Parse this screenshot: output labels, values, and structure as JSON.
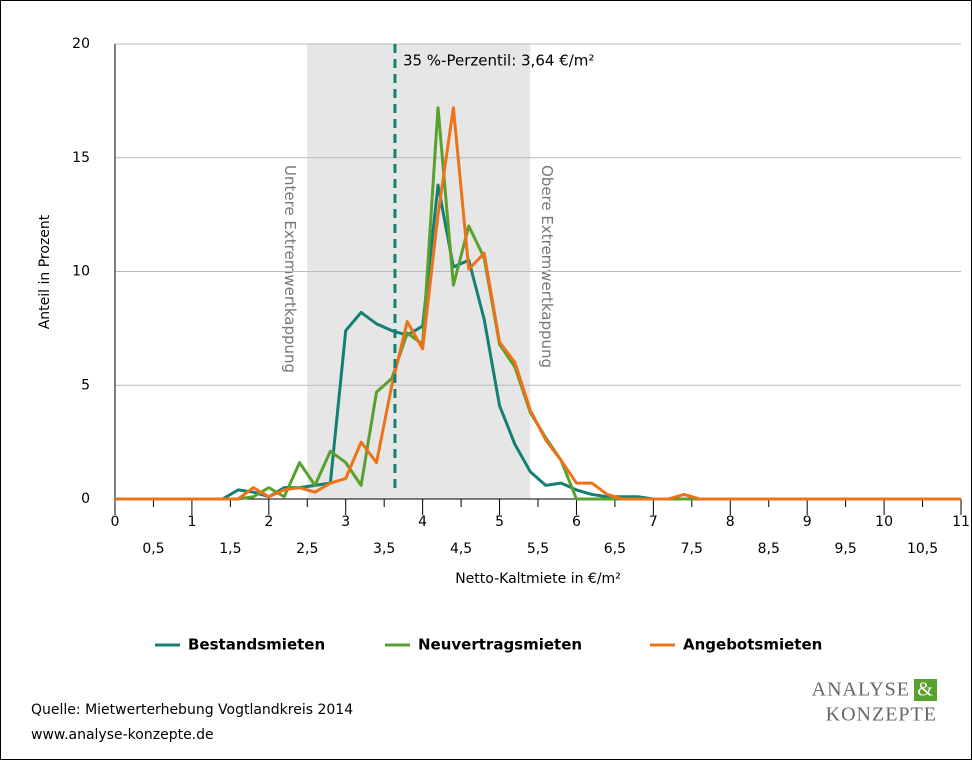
{
  "chart_data": {
    "type": "line",
    "ylabel": "Anteil in Prozent",
    "xlabel": "Netto-Kaltmiete in €/m²",
    "xlim": [
      0,
      11
    ],
    "ylim": [
      0,
      20
    ],
    "yticks": [
      0,
      5,
      10,
      15,
      20
    ],
    "xticks": [
      0,
      1,
      2,
      3,
      4,
      5,
      6,
      7,
      8,
      9,
      10,
      11
    ],
    "xticks_half": [
      {
        "value": 0.5,
        "label": "0,5"
      },
      {
        "value": 1.5,
        "label": "1,5"
      },
      {
        "value": 2.5,
        "label": "2,5"
      },
      {
        "value": 3.5,
        "label": "3,5"
      },
      {
        "value": 4.5,
        "label": "4,5"
      },
      {
        "value": 5.5,
        "label": "5,5"
      },
      {
        "value": 6.5,
        "label": "6,5"
      },
      {
        "value": 7.5,
        "label": "7,5"
      },
      {
        "value": 8.5,
        "label": "8,5"
      },
      {
        "value": 9.5,
        "label": "9,5"
      },
      {
        "value": 10.5,
        "label": "10,5"
      }
    ],
    "grid": true,
    "shaded_region": {
      "from": 2.5,
      "to": 5.4,
      "color": "#e6e6e6",
      "label_left": "Untere Extremwertkappung",
      "label_right": "Obere Extremwertkappung"
    },
    "percentile_line": {
      "value": 3.64,
      "label": "35 %-Perzentil: 3,64 €/m²",
      "color": "#138074"
    },
    "x": [
      0,
      0.2,
      0.4,
      0.6,
      0.8,
      1,
      1.2,
      1.4,
      1.6,
      1.8,
      2,
      2.2,
      2.4,
      2.6,
      2.8,
      3,
      3.2,
      3.4,
      3.6,
      3.8,
      4,
      4.2,
      4.4,
      4.6,
      4.8,
      5,
      5.2,
      5.4,
      5.6,
      5.8,
      6,
      6.2,
      6.4,
      6.6,
      6.8,
      7,
      7.2,
      7.4,
      7.6,
      7.8,
      8,
      8.2,
      8.4,
      8.6,
      8.8,
      9,
      9.2,
      9.4,
      9.6,
      9.8,
      10,
      10.2,
      10.4,
      10.6,
      10.8,
      11
    ],
    "series": [
      {
        "name": "Bestandsmieten",
        "color": "#138074",
        "values": [
          0,
          0,
          0,
          0,
          0,
          0,
          0,
          0,
          0.4,
          0.3,
          0.1,
          0.5,
          0.5,
          0.6,
          0.7,
          7.4,
          8.2,
          7.7,
          7.4,
          7.2,
          7.6,
          13.8,
          10.2,
          10.5,
          7.9,
          4.1,
          2.4,
          1.2,
          0.6,
          0.7,
          0.4,
          0.2,
          0.1,
          0.1,
          0.1,
          0,
          0,
          0,
          0,
          0,
          0,
          0,
          0,
          0,
          0,
          0,
          0,
          0,
          0,
          0,
          0,
          0,
          0,
          0,
          0,
          0
        ]
      },
      {
        "name": "Neuvertragsmieten",
        "color": "#5aa02c",
        "values": [
          0,
          0,
          0,
          0,
          0,
          0,
          0,
          0,
          0,
          0.1,
          0.5,
          0.1,
          1.6,
          0.6,
          2.1,
          1.6,
          0.6,
          4.7,
          5.3,
          7.3,
          6.8,
          17.2,
          9.4,
          12.0,
          10.6,
          6.8,
          5.8,
          3.8,
          2.7,
          1.7,
          0,
          0,
          0,
          0,
          0,
          0,
          0,
          0,
          0,
          0,
          0,
          0,
          0,
          0,
          0,
          0,
          0,
          0,
          0,
          0,
          0,
          0,
          0,
          0,
          0,
          0
        ]
      },
      {
        "name": "Angebotsmieten",
        "color": "#ee7219",
        "values": [
          0,
          0,
          0,
          0,
          0,
          0,
          0,
          0,
          0,
          0.5,
          0.1,
          0.4,
          0.5,
          0.3,
          0.7,
          0.9,
          2.5,
          1.6,
          5.0,
          7.8,
          6.6,
          12.5,
          17.2,
          10.1,
          10.8,
          6.9,
          6.0,
          3.9,
          2.6,
          1.7,
          0.7,
          0.7,
          0.2,
          0,
          0,
          0,
          0,
          0.2,
          0,
          0,
          0,
          0,
          0,
          0,
          0,
          0,
          0,
          0,
          0,
          0,
          0,
          0,
          0,
          0,
          0,
          0
        ]
      }
    ],
    "source": [
      "Quelle: Mietwerterhebung Vogtlandkreis 2014",
      "www.analyse-konzepte.de"
    ],
    "logo": {
      "line1": "ANALYSE",
      "amp": "&",
      "line2": "KONZEPTE"
    }
  }
}
